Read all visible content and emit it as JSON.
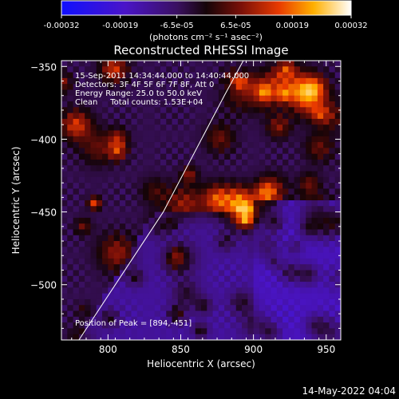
{
  "chart_data": {
    "type": "heatmap",
    "title": "Reconstructed RHESSI Image",
    "xlabel": "Heliocentric X (arcsec)",
    "ylabel": "Heliocentric Y (arcsec)",
    "xlim": [
      768,
      960
    ],
    "ylim": [
      -538,
      -346
    ],
    "x_ticks": [
      800,
      850,
      900,
      950
    ],
    "y_ticks": [
      -350,
      -400,
      -450,
      -500
    ],
    "x_tick_labels": [
      "800",
      "850",
      "900",
      "950"
    ],
    "y_tick_labels": [
      "−350",
      "−400",
      "−450",
      "−500"
    ],
    "colorbar": {
      "range": [
        -0.00032,
        0.00032
      ],
      "tick_values": [
        -0.00032,
        -0.00019,
        -6.5e-05,
        6.5e-05,
        0.00019,
        0.00032
      ],
      "tick_labels": [
        "-0.00032",
        "-0.00019",
        "-6.5e-05",
        "6.5e-05",
        "0.00019",
        "0.00032"
      ],
      "unit_label": "(photons cm⁻² s⁻¹ asec⁻²)"
    },
    "annotations": [
      "15-Sep-2011 14:34:44.000 to 14:40:44.000",
      "Detectors: 3F 4F 5F 6F 7F 8F, Att 0",
      "Energy Range: 25.0 to 50.0 keV",
      "Clean     Total counts: 1.53E+04"
    ],
    "peak_label": "Position of Peak = [894,-451]",
    "peak": {
      "x": 894,
      "y": -451
    },
    "limb": [
      [
        780,
        -538
      ],
      [
        838,
        -450
      ],
      [
        880,
        -370
      ],
      [
        893,
        -346
      ]
    ],
    "grid": false
  },
  "footer": {
    "timestamp": "14-May-2022 04:04"
  }
}
